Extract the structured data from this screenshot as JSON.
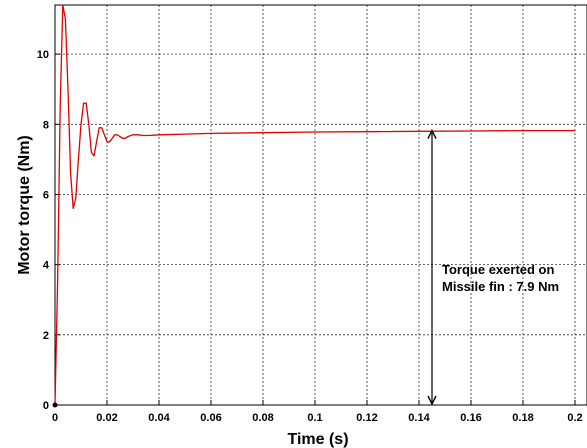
{
  "chart_data": {
    "type": "line",
    "title": "",
    "xlabel": "Time (s)",
    "ylabel": "Motor torque (Nm)",
    "xlim": [
      0,
      0.2
    ],
    "ylim": [
      0,
      11.4
    ],
    "x_ticks": [
      0,
      0.02,
      0.04,
      0.06,
      0.08,
      0.1,
      0.12,
      0.14,
      0.16,
      0.18,
      0.2
    ],
    "x_tick_labels": [
      "0",
      "0.02",
      "0.04",
      "0.06",
      "0.08",
      "0.1",
      "0.12",
      "0.14",
      "0.16",
      "0.18",
      "0.2"
    ],
    "y_ticks": [
      0,
      2,
      4,
      6,
      8,
      10
    ],
    "y_tick_labels": [
      "0",
      "2",
      "4",
      "6",
      "8",
      "10"
    ],
    "grid": true,
    "series": [
      {
        "color": "#e00000",
        "x": [
          0,
          0.001,
          0.002,
          0.003,
          0.004,
          0.005,
          0.006,
          0.007,
          0.008,
          0.009,
          0.01,
          0.011,
          0.012,
          0.013,
          0.014,
          0.015,
          0.016,
          0.017,
          0.018,
          0.019,
          0.02,
          0.021,
          0.022,
          0.023,
          0.024,
          0.025,
          0.026,
          0.027,
          0.028,
          0.03,
          0.032,
          0.034,
          0.036,
          0.04,
          0.05,
          0.06,
          0.08,
          0.1,
          0.12,
          0.14,
          0.16,
          0.18,
          0.2
        ],
        "y": [
          0,
          3.5,
          8.5,
          11.4,
          11.0,
          9.0,
          6.6,
          5.6,
          5.9,
          7.0,
          8.0,
          8.6,
          8.6,
          8.0,
          7.2,
          7.1,
          7.5,
          7.9,
          7.9,
          7.7,
          7.5,
          7.5,
          7.6,
          7.7,
          7.7,
          7.65,
          7.6,
          7.6,
          7.65,
          7.7,
          7.7,
          7.68,
          7.68,
          7.7,
          7.72,
          7.74,
          7.76,
          7.78,
          7.79,
          7.8,
          7.81,
          7.82,
          7.82
        ]
      }
    ],
    "annotations": [
      {
        "text_lines": [
          "Torque exerted on",
          "Missile fin : 7.9 Nm"
        ],
        "arrow_x": 0.145,
        "arrow_y_from": 0,
        "arrow_y_to": 7.85
      }
    ]
  }
}
